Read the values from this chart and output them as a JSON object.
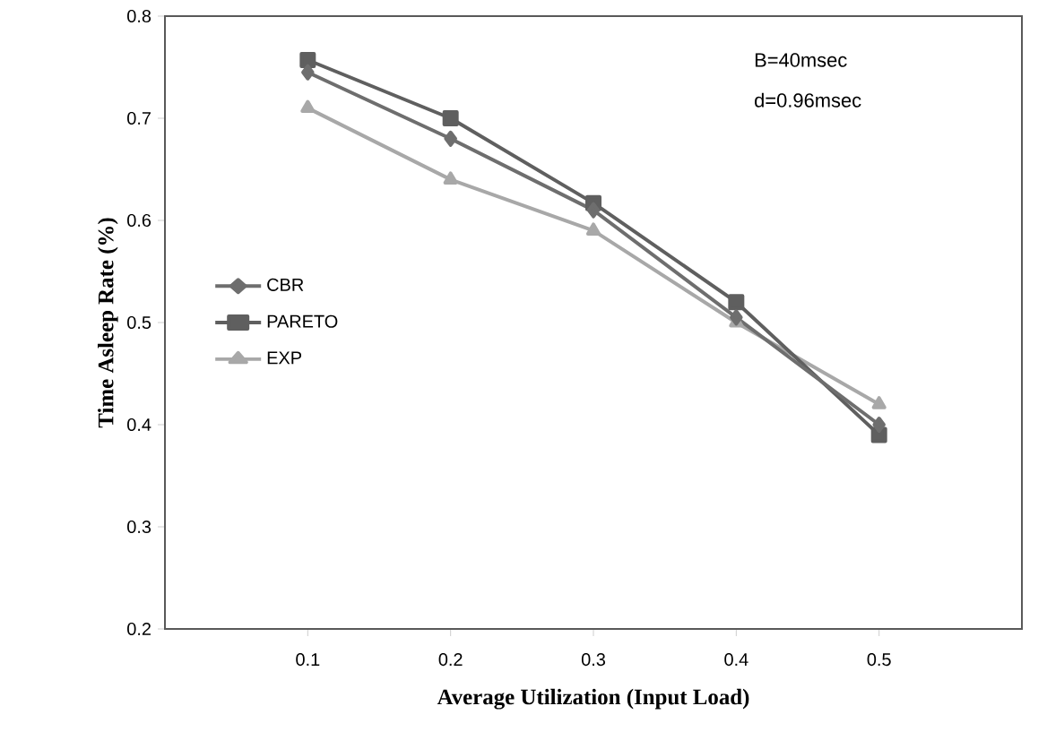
{
  "chart_data": {
    "type": "line",
    "xlabel": "Average Utilization (Input Load)",
    "ylabel": "Time Asleep Rate (%)",
    "x": [
      0.1,
      0.2,
      0.3,
      0.4,
      0.5
    ],
    "series": [
      {
        "name": "CBR",
        "color": "#6e6e6e",
        "marker": "diamond",
        "values": [
          0.745,
          0.68,
          0.61,
          0.505,
          0.4
        ]
      },
      {
        "name": "PARETO",
        "color": "#5f5f5f",
        "marker": "square",
        "values": [
          0.757,
          0.7,
          0.617,
          0.52,
          0.39
        ]
      },
      {
        "name": "EXP",
        "color": "#a8a8a8",
        "marker": "triangle",
        "values": [
          0.71,
          0.64,
          0.59,
          0.5,
          0.42
        ]
      }
    ],
    "xlim": [
      0,
      0.6
    ],
    "xticks": [
      0.1,
      0.2,
      0.3,
      0.4,
      0.5
    ],
    "ylim": [
      0.2,
      0.8
    ],
    "yticks": [
      0.2,
      0.3,
      0.4,
      0.5,
      0.6,
      0.7,
      0.8
    ],
    "annotations": [
      "B=40msec",
      "d=0.96msec"
    ],
    "grid": false,
    "legend": "left",
    "line_style": "solid"
  }
}
